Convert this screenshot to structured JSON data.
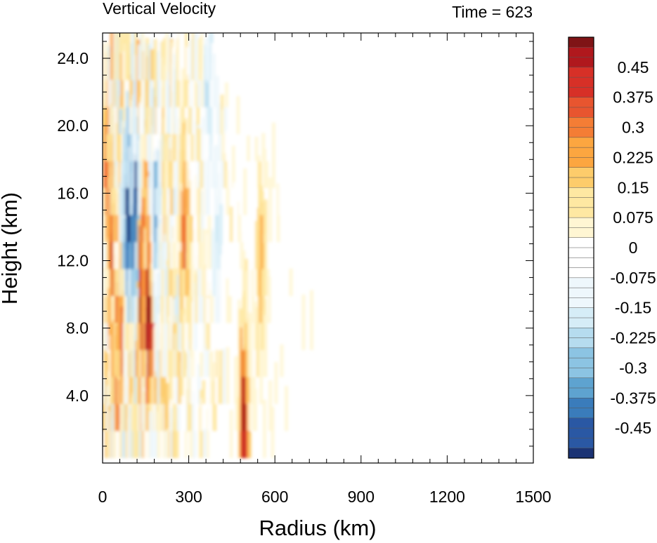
{
  "chart_data": {
    "type": "heatmap",
    "title": "Vertical Velocity",
    "subtitle": "Time = 623",
    "xlabel": "Radius (km)",
    "ylabel": "Height (km)",
    "xlim": [
      0,
      1500
    ],
    "ylim": [
      0,
      25.5
    ],
    "xticks": [
      "0",
      "300",
      "600",
      "900",
      "1200",
      "1500"
    ],
    "xtick_values": [
      0,
      300,
      600,
      900,
      1200,
      1500
    ],
    "yticks": [
      "4.0",
      "8.0",
      "12.0",
      "16.0",
      "20.0",
      "24.0"
    ],
    "ytick_values": [
      4,
      8,
      12,
      16,
      20,
      24
    ],
    "colorbar": {
      "labels": [
        "0.45",
        "0.375",
        "0.3",
        "0.225",
        "0.15",
        "0.075",
        "0",
        "-0.075",
        "-0.15",
        "-0.225",
        "-0.3",
        "-0.375",
        "-0.45"
      ],
      "label_values": [
        0.45,
        0.375,
        0.3,
        0.225,
        0.15,
        0.075,
        0,
        -0.075,
        -0.15,
        -0.225,
        -0.3,
        -0.375,
        -0.45
      ],
      "range": [
        -0.525,
        0.525
      ],
      "levels": 42,
      "colors_top_to_bottom": [
        "#7f1416",
        "#b0181d",
        "#d73027",
        "#e8552f",
        "#f47d35",
        "#fca640",
        "#fdcc6b",
        "#fee8a2",
        "#fff6d3",
        "#ffffff",
        "#ffffff",
        "#eef7fc",
        "#d6edf7",
        "#b6dcef",
        "#8cc4e3",
        "#5ea3d0",
        "#3a7cbb",
        "#2a58a4",
        "#1b3374"
      ]
    },
    "features": [
      {
        "x": 0,
        "z": 20,
        "value": -0.3
      },
      {
        "x": 2,
        "z": 19,
        "value": 0.45
      },
      {
        "x": 30,
        "z": 12,
        "value": 0.3
      },
      {
        "x": 55,
        "z": 5,
        "value": 0.3
      },
      {
        "x": 90,
        "z": 13.5,
        "value": -0.5
      },
      {
        "x": 120,
        "z": 12,
        "value": -0.5
      },
      {
        "x": 135,
        "z": 10,
        "value": 0.52
      },
      {
        "x": 165,
        "z": 8,
        "value": 0.52
      },
      {
        "x": 185,
        "z": 13,
        "value": -0.3
      },
      {
        "x": 290,
        "z": 13,
        "value": 0.3
      },
      {
        "x": 370,
        "z": 21,
        "value": -0.225
      },
      {
        "x": 495,
        "z": 1.5,
        "value": 0.52
      },
      {
        "x": 555,
        "z": 11,
        "value": 0.225
      },
      {
        "x": 400,
        "z": 12,
        "value": -0.15
      }
    ]
  }
}
